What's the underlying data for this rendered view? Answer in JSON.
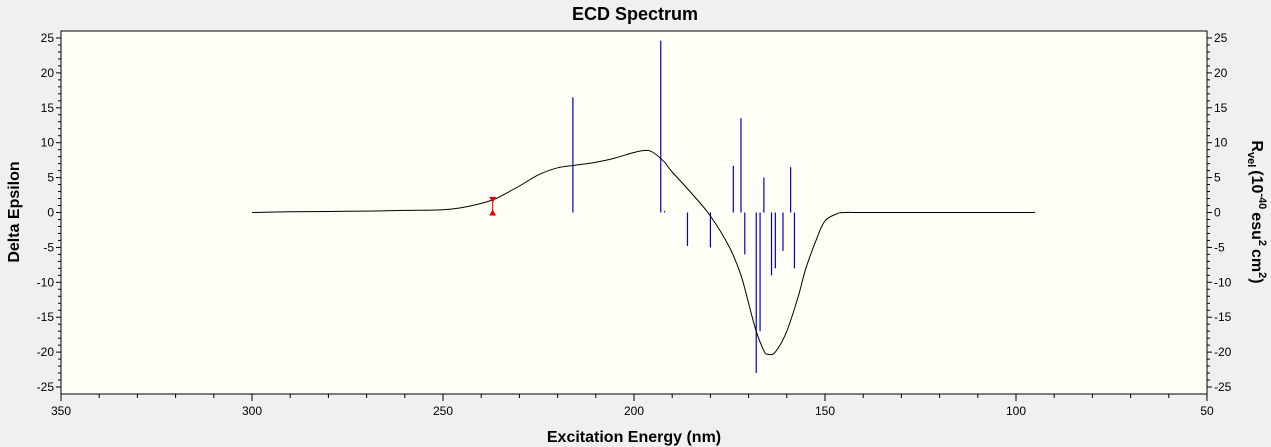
{
  "chart_data": {
    "type": "line",
    "title": "ECD Spectrum",
    "xlabel": "Excitation Energy (nm)",
    "ylabel": "Delta Epsilon",
    "y2label": {
      "r": "R",
      "vel": "vel",
      "open": "(10",
      "exp1": "-40",
      "esu": "esu",
      "exp2": "2",
      "cm": "cm",
      "exp3": "2",
      "close": ")"
    },
    "x_reversed": true,
    "xlim": [
      350,
      50
    ],
    "ylim": [
      -26,
      26
    ],
    "y2lim": [
      -26,
      26
    ],
    "grid": true,
    "x_ticks": [
      350,
      300,
      250,
      200,
      150,
      100,
      50
    ],
    "y_ticks": [
      25,
      20,
      15,
      10,
      5,
      0,
      -5,
      -10,
      -15,
      -20,
      -25
    ],
    "colors": {
      "plot_bg": "#fefef6",
      "curve": "#000000",
      "sticks": "#0000cc",
      "marker": "#ee0000",
      "grid": "#b0b0b0",
      "frame_bg": "#f0f0f0"
    },
    "series": [
      {
        "kind": "curve",
        "x": [
          300,
          290,
          280,
          270,
          260,
          250,
          245,
          240,
          237,
          235,
          230,
          225,
          220,
          215,
          210,
          205,
          200,
          197,
          195,
          192,
          190,
          185,
          180,
          175,
          172,
          170,
          168,
          166,
          165,
          163,
          160,
          157,
          155,
          152,
          150,
          147,
          145,
          140,
          130,
          120,
          110,
          100,
          95
        ],
        "y": [
          0,
          0.1,
          0.15,
          0.2,
          0.3,
          0.4,
          0.7,
          1.3,
          1.8,
          2.3,
          3.8,
          5.4,
          6.4,
          6.8,
          7.2,
          7.8,
          8.6,
          8.9,
          8.6,
          7.2,
          5.8,
          2.8,
          -0.5,
          -5,
          -9,
          -13,
          -17,
          -19.8,
          -20.3,
          -20,
          -17,
          -12,
          -8,
          -3.5,
          -1.2,
          -0.2,
          0,
          0,
          0,
          0,
          0,
          0,
          0
        ]
      },
      {
        "kind": "sticks",
        "x": [
          216,
          193,
          192,
          186,
          180,
          174,
          172,
          171,
          168,
          167,
          166,
          164,
          163,
          161,
          159,
          158
        ],
        "y": [
          16.5,
          24.6,
          0.2,
          -4.8,
          -5,
          6.7,
          13.5,
          -6,
          -23,
          -17,
          5,
          -9,
          -8,
          -5.5,
          6.5,
          -8
        ]
      },
      {
        "kind": "marker",
        "x": [
          237
        ],
        "y_top": [
          1.8
        ],
        "y_bottom": [
          0
        ]
      }
    ]
  }
}
